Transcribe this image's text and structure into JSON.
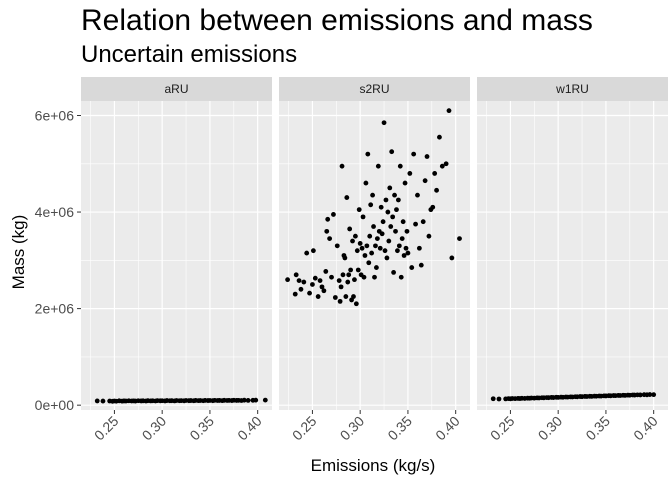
{
  "title": "Relation between emissions and mass",
  "subtitle": "Uncertain emissions",
  "chart_data": {
    "type": "scatter",
    "title": "Relation between emissions and mass",
    "subtitle": "Uncertain emissions",
    "xlabel": "Emissions (kg/s)",
    "ylabel": "Mass (kg)",
    "xlim": [
      0.215,
      0.415
    ],
    "ylim": [
      -100000,
      6300000
    ],
    "xticks": [
      0.25,
      0.3,
      0.35,
      0.4
    ],
    "xtick_labels": [
      "0.25",
      "0.30",
      "0.35",
      "0.40"
    ],
    "yticks": [
      0,
      2000000,
      4000000,
      6000000
    ],
    "ytick_labels": [
      "0e+00",
      "2e+06",
      "4e+06",
      "6e+06"
    ],
    "grid": true,
    "facets": [
      "aRU",
      "s2RU",
      "w1RU"
    ],
    "series": [
      {
        "facet": "aRU",
        "points": [
          [
            0.232,
            88000
          ],
          [
            0.238,
            85000
          ],
          [
            0.245,
            86000
          ],
          [
            0.248,
            80000
          ],
          [
            0.25,
            87000
          ],
          [
            0.252,
            82000
          ],
          [
            0.255,
            90000
          ],
          [
            0.258,
            84000
          ],
          [
            0.26,
            88000
          ],
          [
            0.262,
            86000
          ],
          [
            0.265,
            91000
          ],
          [
            0.268,
            87000
          ],
          [
            0.27,
            89000
          ],
          [
            0.272,
            85000
          ],
          [
            0.275,
            92000
          ],
          [
            0.278,
            88000
          ],
          [
            0.28,
            90000
          ],
          [
            0.283,
            86000
          ],
          [
            0.285,
            93000
          ],
          [
            0.288,
            89000
          ],
          [
            0.29,
            91000
          ],
          [
            0.293,
            87000
          ],
          [
            0.295,
            94000
          ],
          [
            0.298,
            90000
          ],
          [
            0.3,
            92000
          ],
          [
            0.303,
            88000
          ],
          [
            0.305,
            95000
          ],
          [
            0.308,
            91000
          ],
          [
            0.31,
            93000
          ],
          [
            0.313,
            89000
          ],
          [
            0.315,
            96000
          ],
          [
            0.318,
            92000
          ],
          [
            0.32,
            94000
          ],
          [
            0.323,
            90000
          ],
          [
            0.325,
            97000
          ],
          [
            0.328,
            93000
          ],
          [
            0.33,
            95000
          ],
          [
            0.333,
            91000
          ],
          [
            0.335,
            98000
          ],
          [
            0.338,
            94000
          ],
          [
            0.34,
            96000
          ],
          [
            0.343,
            92000
          ],
          [
            0.345,
            99000
          ],
          [
            0.348,
            95000
          ],
          [
            0.35,
            97000
          ],
          [
            0.353,
            93000
          ],
          [
            0.355,
            100000
          ],
          [
            0.358,
            96000
          ],
          [
            0.36,
            98000
          ],
          [
            0.363,
            94000
          ],
          [
            0.365,
            101000
          ],
          [
            0.368,
            97000
          ],
          [
            0.37,
            99000
          ],
          [
            0.373,
            95000
          ],
          [
            0.375,
            102000
          ],
          [
            0.378,
            98000
          ],
          [
            0.38,
            100000
          ],
          [
            0.383,
            96000
          ],
          [
            0.386,
            103000
          ],
          [
            0.39,
            99000
          ],
          [
            0.395,
            101000
          ],
          [
            0.398,
            104000
          ],
          [
            0.408,
            105000
          ]
        ]
      },
      {
        "facet": "s2RU",
        "points": [
          [
            0.224,
            2600000
          ],
          [
            0.232,
            2300000
          ],
          [
            0.233,
            2700000
          ],
          [
            0.236,
            2580000
          ],
          [
            0.238,
            2400000
          ],
          [
            0.241,
            2550000
          ],
          [
            0.244,
            3150000
          ],
          [
            0.247,
            2320000
          ],
          [
            0.25,
            2500000
          ],
          [
            0.251,
            3200000
          ],
          [
            0.253,
            2630000
          ],
          [
            0.256,
            2250000
          ],
          [
            0.258,
            2580000
          ],
          [
            0.26,
            2450000
          ],
          [
            0.262,
            2370000
          ],
          [
            0.264,
            2770000
          ],
          [
            0.265,
            3600000
          ],
          [
            0.266,
            3850000
          ],
          [
            0.268,
            3450000
          ],
          [
            0.27,
            2650000
          ],
          [
            0.272,
            3950000
          ],
          [
            0.274,
            2230000
          ],
          [
            0.276,
            3300000
          ],
          [
            0.278,
            2580000
          ],
          [
            0.279,
            2150000
          ],
          [
            0.28,
            2450000
          ],
          [
            0.281,
            4950000
          ],
          [
            0.282,
            2700000
          ],
          [
            0.283,
            3100000
          ],
          [
            0.284,
            3050000
          ],
          [
            0.285,
            2250000
          ],
          [
            0.286,
            4300000
          ],
          [
            0.287,
            2550000
          ],
          [
            0.288,
            2700000
          ],
          [
            0.289,
            3650000
          ],
          [
            0.29,
            2800000
          ],
          [
            0.291,
            2180000
          ],
          [
            0.292,
            3400000
          ],
          [
            0.293,
            2250000
          ],
          [
            0.294,
            2600000
          ],
          [
            0.295,
            3500000
          ],
          [
            0.296,
            2100000
          ],
          [
            0.297,
            3200000
          ],
          [
            0.298,
            2800000
          ],
          [
            0.299,
            4050000
          ],
          [
            0.3,
            3350000
          ],
          [
            0.301,
            2700000
          ],
          [
            0.302,
            3250000
          ],
          [
            0.303,
            3900000
          ],
          [
            0.304,
            2650000
          ],
          [
            0.305,
            3100000
          ],
          [
            0.306,
            4600000
          ],
          [
            0.307,
            3300000
          ],
          [
            0.308,
            5200000
          ],
          [
            0.309,
            2950000
          ],
          [
            0.31,
            3500000
          ],
          [
            0.311,
            4150000
          ],
          [
            0.312,
            3150000
          ],
          [
            0.313,
            4350000
          ],
          [
            0.314,
            3700000
          ],
          [
            0.315,
            2650000
          ],
          [
            0.316,
            3300000
          ],
          [
            0.317,
            2850000
          ],
          [
            0.318,
            3450000
          ],
          [
            0.319,
            4950000
          ],
          [
            0.32,
            3600000
          ],
          [
            0.321,
            3250000
          ],
          [
            0.322,
            4100000
          ],
          [
            0.323,
            3550000
          ],
          [
            0.324,
            3800000
          ],
          [
            0.325,
            5850000
          ],
          [
            0.326,
            3200000
          ],
          [
            0.327,
            4250000
          ],
          [
            0.328,
            3050000
          ],
          [
            0.329,
            4000000
          ],
          [
            0.33,
            3400000
          ],
          [
            0.331,
            4500000
          ],
          [
            0.332,
            3700000
          ],
          [
            0.333,
            5250000
          ],
          [
            0.334,
            3900000
          ],
          [
            0.335,
            2750000
          ],
          [
            0.336,
            4350000
          ],
          [
            0.337,
            3600000
          ],
          [
            0.338,
            4050000
          ],
          [
            0.339,
            3200000
          ],
          [
            0.34,
            4250000
          ],
          [
            0.341,
            3300000
          ],
          [
            0.342,
            4950000
          ],
          [
            0.343,
            2650000
          ],
          [
            0.344,
            3450000
          ],
          [
            0.345,
            3800000
          ],
          [
            0.346,
            3100000
          ],
          [
            0.347,
            4600000
          ],
          [
            0.348,
            3250000
          ],
          [
            0.349,
            3600000
          ],
          [
            0.35,
            3150000
          ],
          [
            0.352,
            4800000
          ],
          [
            0.354,
            2850000
          ],
          [
            0.356,
            5200000
          ],
          [
            0.358,
            3750000
          ],
          [
            0.36,
            4350000
          ],
          [
            0.362,
            3250000
          ],
          [
            0.364,
            2900000
          ],
          [
            0.366,
            3800000
          ],
          [
            0.368,
            4650000
          ],
          [
            0.37,
            5150000
          ],
          [
            0.372,
            3500000
          ],
          [
            0.374,
            4050000
          ],
          [
            0.376,
            4100000
          ],
          [
            0.378,
            4800000
          ],
          [
            0.38,
            4450000
          ],
          [
            0.383,
            5550000
          ],
          [
            0.386,
            4950000
          ],
          [
            0.39,
            5000000
          ],
          [
            0.393,
            6100000
          ],
          [
            0.396,
            3050000
          ],
          [
            0.404,
            3450000
          ]
        ]
      },
      {
        "facet": "w1RU",
        "points": [
          [
            0.232,
            133000
          ],
          [
            0.238,
            128000
          ],
          [
            0.245,
            130000
          ],
          [
            0.248,
            136000
          ],
          [
            0.25,
            132000
          ],
          [
            0.252,
            138000
          ],
          [
            0.255,
            135000
          ],
          [
            0.258,
            140000
          ],
          [
            0.26,
            137000
          ],
          [
            0.262,
            142000
          ],
          [
            0.265,
            139000
          ],
          [
            0.268,
            145000
          ],
          [
            0.27,
            143000
          ],
          [
            0.272,
            148000
          ],
          [
            0.275,
            146000
          ],
          [
            0.278,
            151000
          ],
          [
            0.28,
            149000
          ],
          [
            0.283,
            154000
          ],
          [
            0.285,
            152000
          ],
          [
            0.288,
            157000
          ],
          [
            0.29,
            155000
          ],
          [
            0.293,
            160000
          ],
          [
            0.295,
            158000
          ],
          [
            0.298,
            163000
          ],
          [
            0.3,
            161000
          ],
          [
            0.303,
            166000
          ],
          [
            0.305,
            164000
          ],
          [
            0.308,
            169000
          ],
          [
            0.31,
            167000
          ],
          [
            0.313,
            172000
          ],
          [
            0.315,
            170000
          ],
          [
            0.318,
            175000
          ],
          [
            0.32,
            173000
          ],
          [
            0.323,
            178000
          ],
          [
            0.325,
            176000
          ],
          [
            0.328,
            181000
          ],
          [
            0.33,
            179000
          ],
          [
            0.333,
            184000
          ],
          [
            0.335,
            182000
          ],
          [
            0.338,
            187000
          ],
          [
            0.34,
            185000
          ],
          [
            0.343,
            190000
          ],
          [
            0.345,
            188000
          ],
          [
            0.348,
            193000
          ],
          [
            0.35,
            191000
          ],
          [
            0.353,
            196000
          ],
          [
            0.355,
            194000
          ],
          [
            0.358,
            199000
          ],
          [
            0.36,
            197000
          ],
          [
            0.363,
            202000
          ],
          [
            0.365,
            200000
          ],
          [
            0.368,
            205000
          ],
          [
            0.37,
            203000
          ],
          [
            0.373,
            208000
          ],
          [
            0.375,
            206000
          ],
          [
            0.378,
            211000
          ],
          [
            0.38,
            209000
          ],
          [
            0.383,
            214000
          ],
          [
            0.386,
            212000
          ],
          [
            0.39,
            217000
          ],
          [
            0.393,
            215000
          ],
          [
            0.396,
            220000
          ],
          [
            0.4,
            218000
          ]
        ]
      }
    ],
    "colors": {
      "panel_bg": "#ebebeb",
      "strip_bg": "#d9d9d9",
      "grid": "#ffffff",
      "point": "#000000",
      "tick_text": "#4d4d4d"
    }
  }
}
